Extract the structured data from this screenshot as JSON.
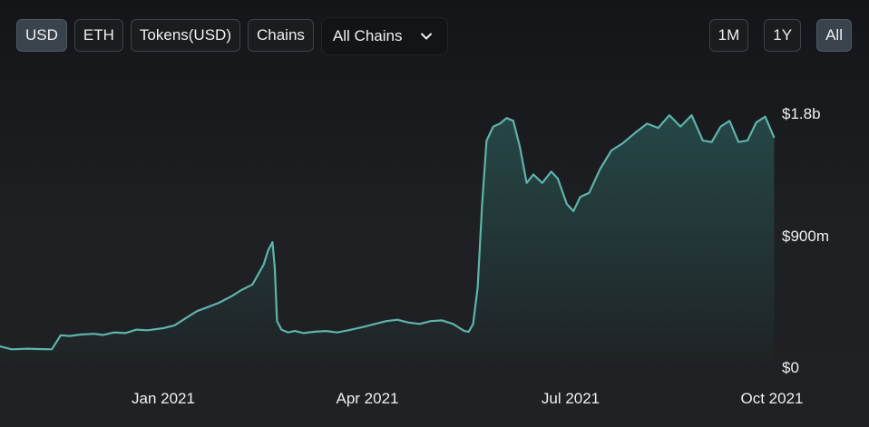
{
  "toolbar": {
    "buttons": [
      {
        "label": "USD",
        "active": true
      },
      {
        "label": "ETH",
        "active": false
      },
      {
        "label": "Tokens(USD)",
        "active": false
      },
      {
        "label": "Chains",
        "active": false
      }
    ],
    "chain_select": {
      "value": "All Chains",
      "icon": "chevron-down-icon"
    },
    "ranges": [
      {
        "label": "1M",
        "active": false
      },
      {
        "label": "1Y",
        "active": false
      },
      {
        "label": "All",
        "active": true
      }
    ]
  },
  "colors": {
    "line": "#5fb3aa",
    "fill_top": "#2f6b66",
    "active_btn": "#39434b"
  },
  "chart_data": {
    "type": "area",
    "title": "",
    "xlabel": "",
    "ylabel": "",
    "x_ticks": [
      "Jan 2021",
      "Apr 2021",
      "Jul 2021",
      "Oct 2021"
    ],
    "y_ticks": [
      "$0",
      "$900m",
      "$1.8b"
    ],
    "ylim": [
      0,
      1800
    ],
    "y_unit": "millions USD",
    "grid": false,
    "legend": "none",
    "series": [
      {
        "points": [
          [
            "2020-10-15",
            145
          ],
          [
            "2020-10-20",
            140
          ],
          [
            "2020-10-25",
            120
          ],
          [
            "2020-11-01",
            125
          ],
          [
            "2020-11-06",
            122
          ],
          [
            "2020-11-12",
            120
          ],
          [
            "2020-11-16",
            220
          ],
          [
            "2020-11-20",
            215
          ],
          [
            "2020-11-25",
            225
          ],
          [
            "2020-12-01",
            230
          ],
          [
            "2020-12-05",
            222
          ],
          [
            "2020-12-10",
            240
          ],
          [
            "2020-12-15",
            235
          ],
          [
            "2020-12-20",
            260
          ],
          [
            "2020-12-25",
            255
          ],
          [
            "2021-01-01",
            270
          ],
          [
            "2021-01-06",
            290
          ],
          [
            "2021-01-11",
            340
          ],
          [
            "2021-01-16",
            390
          ],
          [
            "2021-01-21",
            420
          ],
          [
            "2021-01-26",
            450
          ],
          [
            "2021-02-01",
            500
          ],
          [
            "2021-02-05",
            540
          ],
          [
            "2021-02-10",
            580
          ],
          [
            "2021-02-15",
            720
          ],
          [
            "2021-02-17",
            820
          ],
          [
            "2021-02-19",
            880
          ],
          [
            "2021-02-20",
            700
          ],
          [
            "2021-02-21",
            320
          ],
          [
            "2021-02-23",
            260
          ],
          [
            "2021-02-26",
            240
          ],
          [
            "2021-03-01",
            250
          ],
          [
            "2021-03-05",
            235
          ],
          [
            "2021-03-10",
            245
          ],
          [
            "2021-03-15",
            250
          ],
          [
            "2021-03-20",
            240
          ],
          [
            "2021-03-25",
            255
          ],
          [
            "2021-04-01",
            280
          ],
          [
            "2021-04-06",
            300
          ],
          [
            "2021-04-11",
            320
          ],
          [
            "2021-04-16",
            330
          ],
          [
            "2021-04-21",
            310
          ],
          [
            "2021-04-26",
            300
          ],
          [
            "2021-05-01",
            320
          ],
          [
            "2021-05-06",
            325
          ],
          [
            "2021-05-11",
            300
          ],
          [
            "2021-05-16",
            250
          ],
          [
            "2021-05-18",
            245
          ],
          [
            "2021-05-20",
            300
          ],
          [
            "2021-05-22",
            560
          ],
          [
            "2021-05-24",
            1150
          ],
          [
            "2021-05-26",
            1600
          ],
          [
            "2021-05-29",
            1700
          ],
          [
            "2021-06-01",
            1720
          ],
          [
            "2021-06-04",
            1760
          ],
          [
            "2021-06-07",
            1740
          ],
          [
            "2021-06-10",
            1550
          ],
          [
            "2021-06-13",
            1300
          ],
          [
            "2021-06-16",
            1360
          ],
          [
            "2021-06-20",
            1300
          ],
          [
            "2021-06-24",
            1380
          ],
          [
            "2021-06-27",
            1330
          ],
          [
            "2021-07-01",
            1150
          ],
          [
            "2021-07-04",
            1100
          ],
          [
            "2021-07-07",
            1200
          ],
          [
            "2021-07-11",
            1230
          ],
          [
            "2021-07-16",
            1400
          ],
          [
            "2021-07-21",
            1530
          ],
          [
            "2021-07-26",
            1580
          ],
          [
            "2021-08-01",
            1660
          ],
          [
            "2021-08-06",
            1720
          ],
          [
            "2021-08-11",
            1690
          ],
          [
            "2021-08-16",
            1780
          ],
          [
            "2021-08-21",
            1700
          ],
          [
            "2021-08-26",
            1780
          ],
          [
            "2021-08-31",
            1600
          ],
          [
            "2021-09-04",
            1590
          ],
          [
            "2021-09-08",
            1700
          ],
          [
            "2021-09-12",
            1740
          ],
          [
            "2021-09-16",
            1590
          ],
          [
            "2021-09-20",
            1600
          ],
          [
            "2021-09-24",
            1730
          ],
          [
            "2021-09-28",
            1770
          ],
          [
            "2021-10-02",
            1620
          ]
        ]
      }
    ]
  }
}
